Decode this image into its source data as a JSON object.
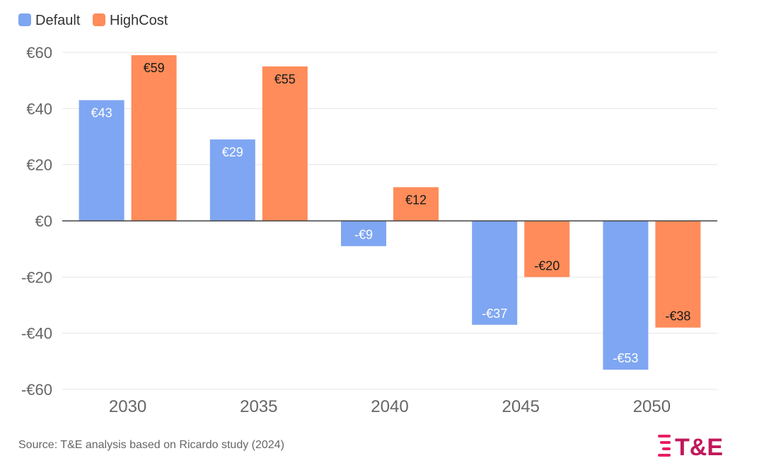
{
  "chart_data": {
    "type": "bar",
    "categories": [
      "2030",
      "2035",
      "2040",
      "2045",
      "2050"
    ],
    "series": [
      {
        "name": "Default",
        "values": [
          43,
          29,
          -9,
          -37,
          -53
        ],
        "labels": [
          "€43",
          "€29",
          "-€9",
          "-€37",
          "-€53"
        ],
        "color": "#7FA6F2"
      },
      {
        "name": "HighCost",
        "values": [
          59,
          55,
          12,
          -20,
          -38
        ],
        "labels": [
          "€59",
          "€55",
          "€12",
          "-€20",
          "-€38"
        ],
        "color": "#FF8C5A"
      }
    ],
    "ylim": [
      -60,
      60
    ],
    "yticks": [
      60,
      40,
      20,
      0,
      -20,
      -40,
      -60
    ],
    "ytick_labels": [
      "€60",
      "€40",
      "€20",
      "€0",
      "-€20",
      "-€40",
      "-€60"
    ],
    "grid": true,
    "legend_position": "top-left"
  },
  "source": "Source: T&E analysis based on Ricardo study (2024)",
  "logo": {
    "text": "T&E",
    "color": "#C2185B",
    "accent": "#E91E63"
  }
}
